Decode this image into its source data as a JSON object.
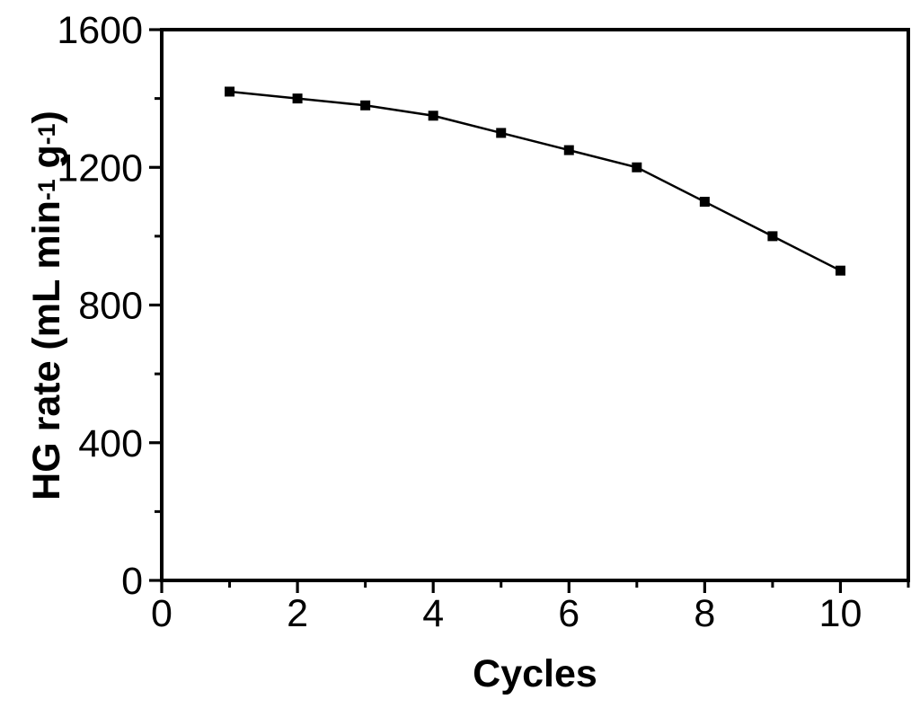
{
  "figure": {
    "background_color": "#ffffff",
    "foreground_color": "#000000"
  },
  "chart_data": {
    "type": "line",
    "title": "",
    "xlabel": "Cycles",
    "ylabel": "HG rate (mL min-1 g-1)",
    "ylabel_parts": [
      {
        "text": "HG rate (mL min"
      },
      {
        "text": "-1",
        "sup": true
      },
      {
        "text": " g"
      },
      {
        "text": "-1",
        "sup": true
      },
      {
        "text": ")"
      }
    ],
    "series": [
      {
        "name": "HG rate",
        "x": [
          1,
          2,
          3,
          4,
          5,
          6,
          7,
          8,
          9,
          10
        ],
        "values": [
          1420,
          1400,
          1380,
          1350,
          1300,
          1250,
          1200,
          1100,
          1000,
          900
        ],
        "marker": "filled-square",
        "color": "#000000"
      }
    ],
    "xlim": [
      0,
      11
    ],
    "ylim": [
      0,
      1600
    ],
    "x_major_ticks": [
      0,
      2,
      4,
      6,
      8,
      10
    ],
    "x_minor_ticks": [
      1,
      3,
      5,
      7,
      9,
      11
    ],
    "y_major_ticks": [
      0,
      400,
      800,
      1200,
      1600
    ],
    "y_minor_ticks": [
      200,
      600,
      1000,
      1400
    ],
    "grid": false,
    "legend": "none",
    "frame": "full-box"
  }
}
